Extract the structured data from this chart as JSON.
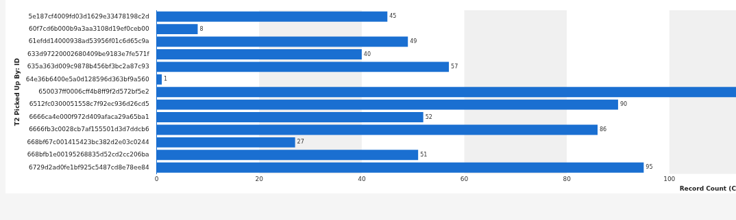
{
  "chart_data": {
    "type": "bar",
    "orientation": "horizontal",
    "xlabel": "Record Count (C",
    "ylabel": "T2 Picked Up By: ID",
    "categories": [
      "5e187cf4009fd03d1629e33478198c2d",
      "60f7cd6b000b9a3aa3108d19ef0ceb00",
      "61efdd14000938ad53956f01c6d65c9a",
      "633d97220002680409be9183e7fe571f",
      "635a363d009c9878b456bf3bc2a87c93",
      "64e36b6400e5a0d128596d363bf9a560",
      "650037ff0006cff4b8ff9f2d572bf5e2",
      "6512fc0300051558c7f92ec936d26cd5",
      "6666ca4e000f972d409afaca29a65ba1",
      "6666fb3c0028cb7af155501d3d7ddcb6",
      "668bf67c001415423bc382d2e03c0244",
      "668bfb1e00195268835d52cd2cc206ba",
      "6729d2ad0fe1bf925c5487cd8e78ee84"
    ],
    "values": [
      45,
      8,
      49,
      40,
      57,
      1,
      113,
      90,
      52,
      86,
      27,
      51,
      95
    ],
    "value_labels": [
      "45",
      "8",
      "49",
      "40",
      "57",
      "1",
      null,
      "90",
      "52",
      "86",
      "27",
      "51",
      "95"
    ],
    "color": "#1a6fd1",
    "xlim": [
      0,
      113
    ],
    "xticks": [
      0,
      20,
      40,
      60,
      80,
      100
    ],
    "bands": [
      {
        "axis": "x",
        "from": 20,
        "to": 40,
        "color": "#f0f0f0"
      },
      {
        "axis": "x",
        "from": 60,
        "to": 80,
        "color": "#f0f0f0"
      },
      {
        "axis": "x",
        "from": 100,
        "to": 113,
        "color": "#f0f0f0"
      }
    ],
    "grid": false,
    "legend": false
  }
}
